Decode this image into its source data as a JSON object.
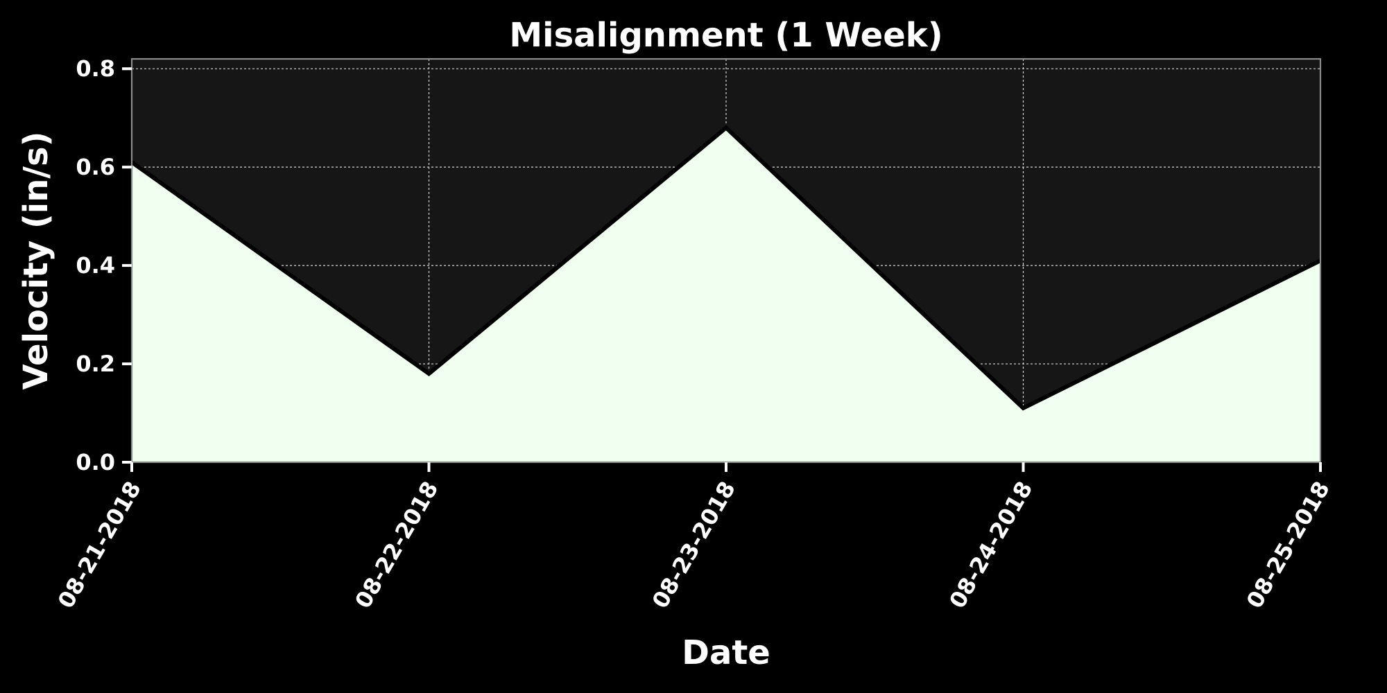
{
  "chart_data": {
    "type": "area",
    "title": "Misalignment (1 Week)",
    "xlabel": "Date",
    "ylabel": "Velocity (in/s)",
    "x": [
      "08-21-2018",
      "08-22-2018",
      "08-23-2018",
      "08-24-2018",
      "08-25-2018"
    ],
    "y": [
      0.61,
      0.18,
      0.68,
      0.11,
      0.41
    ],
    "ylim": [
      0,
      0.82
    ],
    "yticks": [
      0.0,
      0.2,
      0.4,
      0.6,
      0.8
    ],
    "ytick_labels": [
      "0.0",
      "0.2",
      "0.4",
      "0.6",
      "0.8"
    ],
    "grid": true,
    "colors": {
      "background": "#000000",
      "plot_background": "#161616",
      "fill": "#f0fff0",
      "line": "#000000",
      "text": "#ffffff"
    }
  }
}
